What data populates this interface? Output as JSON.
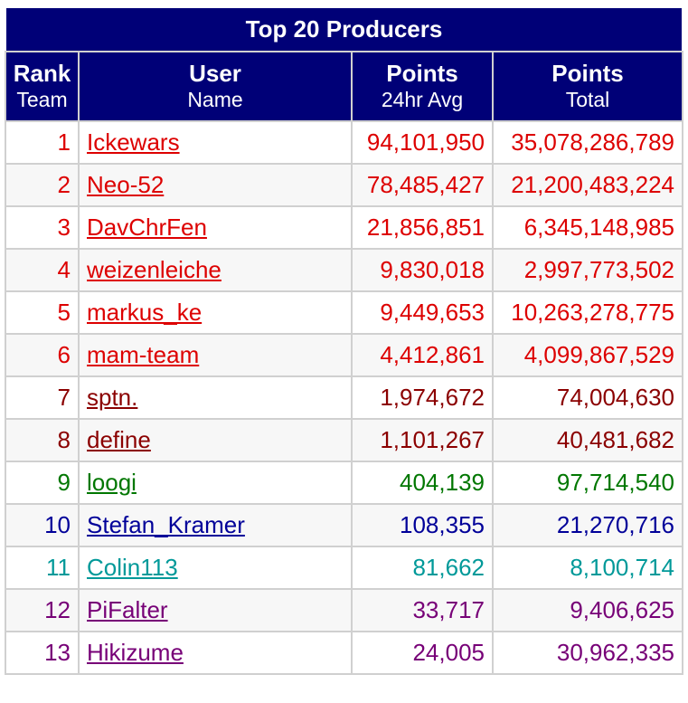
{
  "table": {
    "title": "Top 20 Producers",
    "headers": [
      {
        "line1": "Rank",
        "line2": "Team"
      },
      {
        "line1": "User",
        "line2": "Name"
      },
      {
        "line1": "Points",
        "line2": "24hr Avg"
      },
      {
        "line1": "Points",
        "line2": "Total"
      }
    ],
    "rows": [
      {
        "rank": "1",
        "user": "Ickewars",
        "avg": "94,101,950",
        "total": "35,078,286,789",
        "color": "#dd0000"
      },
      {
        "rank": "2",
        "user": "Neo-52",
        "avg": "78,485,427",
        "total": "21,200,483,224",
        "color": "#dd0000"
      },
      {
        "rank": "3",
        "user": "DavChrFen",
        "avg": "21,856,851",
        "total": "6,345,148,985",
        "color": "#dd0000"
      },
      {
        "rank": "4",
        "user": "weizenleiche",
        "avg": "9,830,018",
        "total": "2,997,773,502",
        "color": "#dd0000"
      },
      {
        "rank": "5",
        "user": "markus_ke",
        "avg": "9,449,653",
        "total": "10,263,278,775",
        "color": "#dd0000"
      },
      {
        "rank": "6",
        "user": "mam-team",
        "avg": "4,412,861",
        "total": "4,099,867,529",
        "color": "#dd0000"
      },
      {
        "rank": "7",
        "user": "sptn.",
        "avg": "1,974,672",
        "total": "74,004,630",
        "color": "#8b0000"
      },
      {
        "rank": "8",
        "user": "define",
        "avg": "1,101,267",
        "total": "40,481,682",
        "color": "#8b0000"
      },
      {
        "rank": "9",
        "user": "loogi",
        "avg": "404,139",
        "total": "97,714,540",
        "color": "#007700"
      },
      {
        "rank": "10",
        "user": "Stefan_Kramer",
        "avg": "108,355",
        "total": "21,270,716",
        "color": "#000099"
      },
      {
        "rank": "11",
        "user": "Colin113",
        "avg": "81,662",
        "total": "8,100,714",
        "color": "#009999"
      },
      {
        "rank": "12",
        "user": "PiFalter",
        "avg": "33,717",
        "total": "9,406,625",
        "color": "#770077"
      },
      {
        "rank": "13",
        "user": "Hikizume",
        "avg": "24,005",
        "total": "30,962,335",
        "color": "#770077"
      }
    ]
  }
}
